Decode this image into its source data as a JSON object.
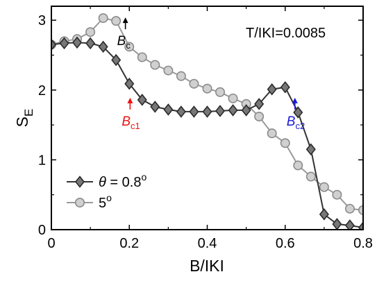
{
  "chart_data": {
    "type": "line",
    "title": "",
    "xlabel": "B/IKI",
    "ylabel": {
      "main": "S",
      "sub": "E"
    },
    "xlim": [
      0,
      0.8
    ],
    "ylim": [
      0,
      3.2
    ],
    "xticks": [
      0,
      0.2,
      0.4,
      0.6,
      0.8
    ],
    "xtick_labels": [
      "0",
      "0.2",
      "0.4",
      "0.6",
      "0.8"
    ],
    "yticks": [
      0,
      1,
      2,
      3
    ],
    "ytick_labels": [
      "0",
      "1",
      "2",
      "3"
    ],
    "grid": false,
    "legend_position": "bottom-left",
    "series": [
      {
        "legend": {
          "symbol": "θ",
          "text": " = 0.8",
          "sup": "o"
        },
        "marker": "diamond",
        "line_color": "#333333",
        "marker_fill": "#777777",
        "marker_edge": "#2a2a2a",
        "x": [
          0.0,
          0.033,
          0.066,
          0.1,
          0.133,
          0.166,
          0.2,
          0.233,
          0.266,
          0.3,
          0.333,
          0.366,
          0.4,
          0.433,
          0.466,
          0.5,
          0.533,
          0.566,
          0.6,
          0.633,
          0.666,
          0.7,
          0.733,
          0.766,
          0.8
        ],
        "y": [
          2.65,
          2.67,
          2.68,
          2.67,
          2.62,
          2.43,
          2.09,
          1.86,
          1.76,
          1.72,
          1.69,
          1.69,
          1.69,
          1.7,
          1.71,
          1.71,
          1.8,
          2.01,
          2.04,
          1.68,
          1.15,
          0.22,
          0.08,
          0.06,
          0.03
        ]
      },
      {
        "legend": {
          "symbol": "",
          "text": "5",
          "sup": "o"
        },
        "marker": "circle",
        "line_color": "#999999",
        "marker_fill": "#d0d0d0",
        "marker_edge": "#8a8a8a",
        "x": [
          0.0,
          0.033,
          0.066,
          0.1,
          0.133,
          0.166,
          0.2,
          0.233,
          0.266,
          0.3,
          0.333,
          0.366,
          0.4,
          0.433,
          0.466,
          0.5,
          0.533,
          0.566,
          0.6,
          0.633,
          0.666,
          0.7,
          0.733,
          0.766,
          0.8
        ],
        "y": [
          2.65,
          2.7,
          2.73,
          2.83,
          3.03,
          2.99,
          2.62,
          2.47,
          2.36,
          2.28,
          2.2,
          2.09,
          2.02,
          1.97,
          1.88,
          1.8,
          1.62,
          1.38,
          1.24,
          0.92,
          0.76,
          0.61,
          0.5,
          0.3,
          0.28
        ]
      }
    ],
    "text_annotation": "T/IKI=0.0085",
    "annotations": [
      {
        "base": "B",
        "sub": "c",
        "x": 0.19,
        "y": 3.0,
        "label_color": "#000000",
        "arrow_color": "#000000"
      },
      {
        "base": "B",
        "sub": "c1",
        "x": 0.202,
        "y": 1.85,
        "label_color": "#ee1111",
        "arrow_color": "#ee1111"
      },
      {
        "base": "B",
        "sub": "c2",
        "x": 0.625,
        "y": 1.85,
        "label_color": "#1a1ad8",
        "arrow_color": "#1a1ad8"
      }
    ]
  }
}
